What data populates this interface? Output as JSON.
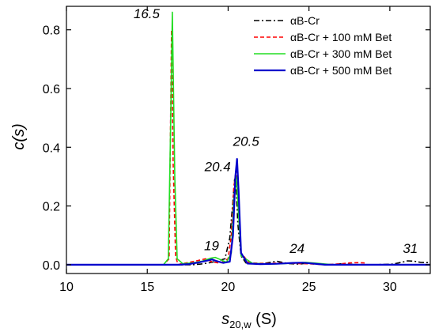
{
  "chart_data": {
    "type": "line",
    "xlabel": {
      "main": "s",
      "sub": "20,w",
      "unit": " (S)"
    },
    "ylabel": "c(s)",
    "xlim": [
      10,
      32.5
    ],
    "ylim": [
      -0.03,
      0.88
    ],
    "xticks": [
      10,
      15,
      20,
      25,
      30
    ],
    "xtick_labels": [
      "10",
      "15",
      "20",
      "25",
      "30"
    ],
    "yticks": [
      0.0,
      0.2,
      0.4,
      0.6,
      0.8
    ],
    "ytick_labels": [
      "0.0",
      "0.2",
      "0.4",
      "0.6",
      "0.8"
    ],
    "legend_position": "top-right",
    "annotations": [
      {
        "text": "16.5",
        "x": 16.5,
        "y": 0.85
      },
      {
        "text": "20.5",
        "x": 20.5,
        "y": 0.4
      },
      {
        "text": "20.4",
        "x": 20.4,
        "y": 0.33
      },
      {
        "text": "19",
        "x": 19.0,
        "y": 0.05
      },
      {
        "text": "24",
        "x": 24.0,
        "y": 0.04
      },
      {
        "text": "31",
        "x": 31.0,
        "y": 0.04
      }
    ],
    "series": [
      {
        "name": "αB-Cr",
        "color": "#000000",
        "dash": "dashdot",
        "x": [
          10,
          17.8,
          18.3,
          18.8,
          19.3,
          19.8,
          20.1,
          20.3,
          20.4,
          20.5,
          20.6,
          20.8,
          21.1,
          21.6,
          22.2,
          23.0,
          23.7,
          24.4,
          25.0,
          25.6,
          26.3,
          27.0,
          28.0,
          29.0,
          30.2,
          30.8,
          31.1,
          31.5,
          31.9,
          32.5
        ],
        "y": [
          0,
          0,
          0.002,
          0.006,
          0.012,
          0.02,
          0.09,
          0.22,
          0.29,
          0.26,
          0.14,
          0.03,
          0.006,
          0.003,
          0.004,
          0.012,
          0.004,
          0.002,
          0.006,
          0.002,
          0.0,
          0.003,
          0.0,
          0.0,
          0.002,
          0.009,
          0.013,
          0.012,
          0.008,
          0.007
        ]
      },
      {
        "name": "αB-Cr + 100 mM Bet",
        "color": "#ff0000",
        "dash": "dashed",
        "x": [
          10,
          16.0,
          16.35,
          16.5,
          16.6,
          16.75,
          16.9,
          17.1,
          17.6,
          18.2,
          18.6,
          19.0,
          19.5,
          20.0,
          20.2,
          20.35,
          20.5,
          20.65,
          20.8,
          21.3,
          22.5,
          23.4,
          24.2,
          25.0,
          26.0,
          27.0,
          27.5,
          28.0,
          28.4,
          28.6
        ],
        "y": [
          0,
          0,
          0.02,
          0.8,
          0.35,
          0.03,
          0.0,
          0.003,
          0.008,
          0.015,
          0.02,
          0.01,
          0.005,
          0.02,
          0.1,
          0.26,
          0.33,
          0.2,
          0.04,
          0.006,
          0.004,
          0.006,
          0.004,
          0.003,
          0.0,
          0.003,
          0.006,
          0.007,
          0.006,
          0.0
        ]
      },
      {
        "name": "αB-Cr + 300 mM Bet",
        "color": "#22dd22",
        "dash": "solid",
        "x": [
          10,
          16.0,
          16.3,
          16.45,
          16.55,
          16.7,
          16.85,
          17.2,
          17.8,
          18.4,
          18.9,
          19.2,
          19.5,
          19.9,
          20.2,
          20.35,
          20.5,
          20.65,
          20.8,
          21.5,
          22.5,
          23.5,
          24.2,
          24.8,
          25.5,
          26.5,
          32.5
        ],
        "y": [
          0,
          0,
          0.02,
          0.5,
          0.86,
          0.3,
          0.02,
          0.003,
          0.006,
          0.012,
          0.022,
          0.025,
          0.018,
          0.008,
          0.04,
          0.22,
          0.3,
          0.17,
          0.03,
          0.005,
          0.002,
          0.004,
          0.006,
          0.008,
          0.005,
          0.0,
          0.0
        ]
      },
      {
        "name": "αB-Cr + 500 mM Bet",
        "color": "#0000cc",
        "dash": "solid",
        "x": [
          10,
          17.0,
          17.6,
          18.2,
          18.7,
          19.0,
          19.3,
          19.7,
          20.1,
          20.3,
          20.45,
          20.55,
          20.65,
          20.8,
          21.2,
          22.0,
          23.0,
          24.0,
          24.6,
          25.2,
          26.0,
          32.5
        ],
        "y": [
          0,
          0,
          0.002,
          0.008,
          0.014,
          0.018,
          0.012,
          0.006,
          0.01,
          0.1,
          0.3,
          0.36,
          0.25,
          0.04,
          0.004,
          0.002,
          0.003,
          0.006,
          0.007,
          0.004,
          0.0,
          0.0
        ]
      }
    ]
  }
}
